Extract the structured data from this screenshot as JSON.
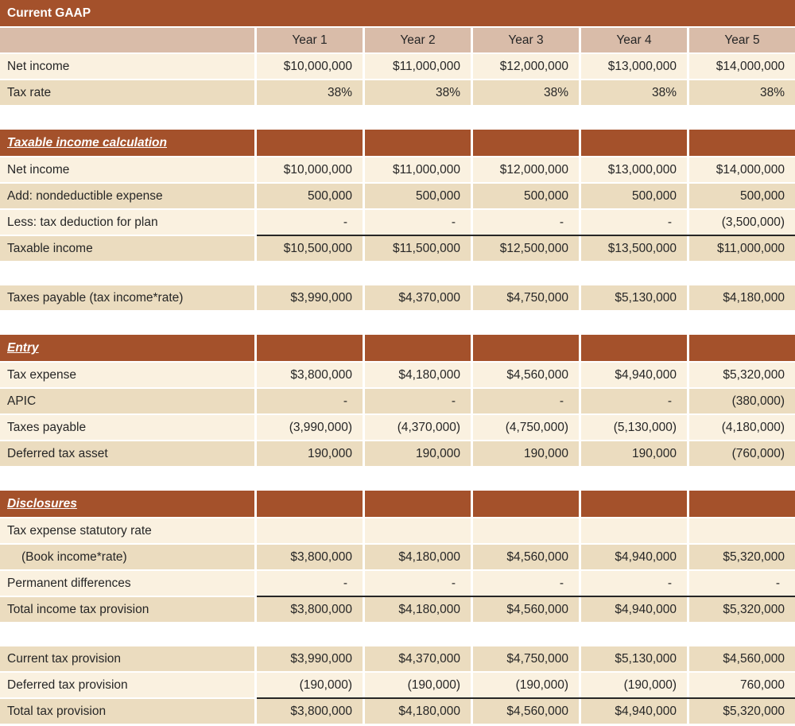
{
  "document_title": "Current GAAP",
  "colors": {
    "accent_brown": "#A4512B",
    "header_pink": "#D9BCA9",
    "row_cream": "#FAF1E0",
    "row_tan": "#EBDCBF",
    "text": "#262626",
    "background": "#FFFFFF"
  },
  "year_columns": [
    "Year 1",
    "Year 2",
    "Year 3",
    "Year 4",
    "Year 5"
  ],
  "tables": [
    {
      "name": "current-gaap-summary",
      "title": "Current GAAP",
      "header_row": [
        "",
        "Year 1",
        "Year 2",
        "Year 3",
        "Year 4",
        "Year 5"
      ],
      "rows": [
        {
          "label": "Net income",
          "shade": "cream",
          "values": [
            "$10,000,000",
            "$11,000,000",
            "$12,000,000",
            "$13,000,000",
            "$14,000,000"
          ]
        },
        {
          "label": "Tax rate",
          "shade": "tan",
          "values": [
            "38%",
            "38%",
            "38%",
            "38%",
            "38%"
          ]
        }
      ]
    },
    {
      "name": "taxable-income-calculation",
      "section_header": "Taxable income calculation",
      "rows": [
        {
          "label": "Net income",
          "shade": "cream",
          "values": [
            "$10,000,000",
            "$11,000,000",
            "$12,000,000",
            "$13,000,000",
            "$14,000,000"
          ]
        },
        {
          "label": "Add: nondeductible expense",
          "shade": "tan",
          "values": [
            "500,000",
            "500,000",
            "500,000",
            "500,000",
            "500,000"
          ]
        },
        {
          "label": "Less: tax deduction for plan",
          "shade": "cream",
          "values": [
            "-",
            "-",
            "-",
            "-",
            "(3,500,000)"
          ]
        },
        {
          "label": "Taxable income",
          "shade": "tan",
          "sum_line": true,
          "values": [
            "$10,500,000",
            "$11,500,000",
            "$12,500,000",
            "$13,500,000",
            "$11,000,000"
          ]
        }
      ]
    },
    {
      "name": "taxes-payable",
      "rows": [
        {
          "label": "Taxes payable (tax income*rate)",
          "shade": "tan",
          "values": [
            "$3,990,000",
            "$4,370,000",
            "$4,750,000",
            "$5,130,000",
            "$4,180,000"
          ]
        }
      ]
    },
    {
      "name": "entry",
      "section_header": "Entry",
      "rows": [
        {
          "label": "Tax expense",
          "shade": "cream",
          "values": [
            "$3,800,000",
            "$4,180,000",
            "$4,560,000",
            "$4,940,000",
            "$5,320,000"
          ]
        },
        {
          "label": "APIC",
          "shade": "tan",
          "values": [
            "-",
            "-",
            "-",
            "-",
            "(380,000)"
          ]
        },
        {
          "label": "Taxes payable",
          "shade": "cream",
          "values": [
            "(3,990,000)",
            "(4,370,000)",
            "(4,750,000)",
            "(5,130,000)",
            "(4,180,000)"
          ]
        },
        {
          "label": "Deferred tax asset",
          "shade": "tan",
          "values": [
            "190,000",
            "190,000",
            "190,000",
            "190,000",
            "(760,000)"
          ]
        }
      ]
    },
    {
      "name": "disclosures",
      "section_header": "Disclosures",
      "rows": [
        {
          "label": "Tax expense statutory rate",
          "shade": "cream",
          "values": [
            "",
            "",
            "",
            "",
            ""
          ]
        },
        {
          "label": "(Book income*rate)",
          "indent": true,
          "shade": "tan",
          "values": [
            "$3,800,000",
            "$4,180,000",
            "$4,560,000",
            "$4,940,000",
            "$5,320,000"
          ]
        },
        {
          "label": "Permanent differences",
          "shade": "cream",
          "values": [
            "-",
            "-",
            "-",
            "-",
            "-"
          ]
        },
        {
          "label": "Total income tax provision",
          "shade": "tan",
          "sum_line": true,
          "values": [
            "$3,800,000",
            "$4,180,000",
            "$4,560,000",
            "$4,940,000",
            "$5,320,000"
          ]
        }
      ]
    },
    {
      "name": "provision-summary",
      "rows": [
        {
          "label": "Current tax provision",
          "shade": "tan",
          "values": [
            "$3,990,000",
            "$4,370,000",
            "$4,750,000",
            "$5,130,000",
            "$4,560,000"
          ]
        },
        {
          "label": "Deferred tax provision",
          "shade": "cream",
          "values": [
            "(190,000)",
            "(190,000)",
            "(190,000)",
            "(190,000)",
            "760,000"
          ]
        },
        {
          "label": "Total tax provision",
          "shade": "tan",
          "sum_line": true,
          "values": [
            "$3,800,000",
            "$4,180,000",
            "$4,560,000",
            "$4,940,000",
            "$5,320,000"
          ]
        }
      ]
    }
  ]
}
